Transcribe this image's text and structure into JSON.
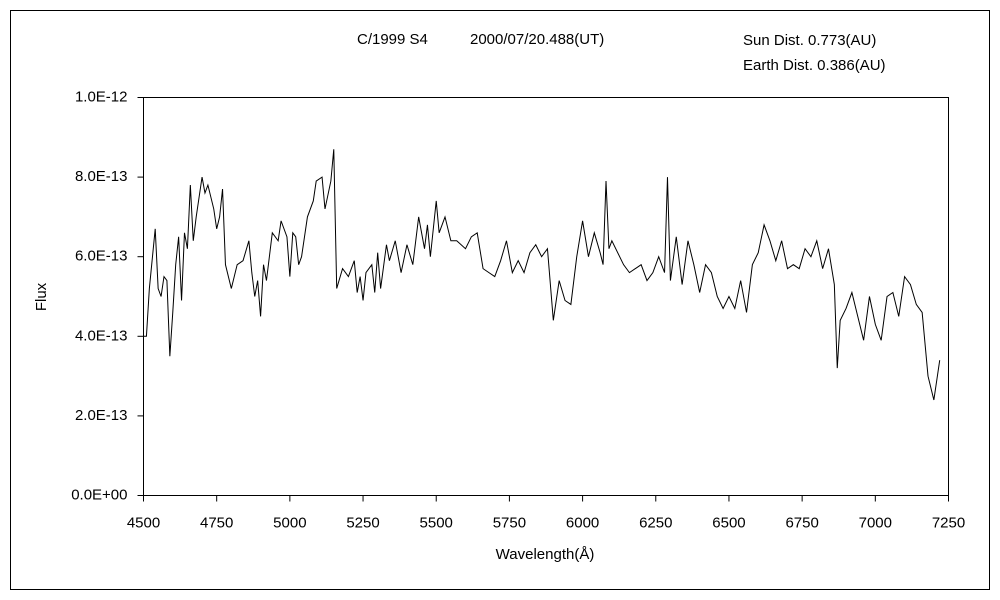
{
  "chart_data": {
    "type": "line",
    "annotations": [
      "C/1999 S4",
      "2000/07/20.488(UT)",
      "Sun Dist. 0.773(AU)",
      "Earth Dist. 0.386(AU)"
    ],
    "x_label": "Wavelength(Å)",
    "y_label": "Flux",
    "color": "#000000",
    "xlim": [
      4500,
      7250
    ],
    "xticks": [
      4500,
      4750,
      5000,
      5250,
      5500,
      5750,
      6000,
      6250,
      6500,
      6750,
      7000,
      7250
    ],
    "ylim": [
      0,
      1e-12
    ],
    "yticks": [
      {
        "value": 0,
        "label": "0.0E+00"
      },
      {
        "value": 2e-13,
        "label": "2.0E-13"
      },
      {
        "value": 4e-13,
        "label": "4.0E-13"
      },
      {
        "value": 6e-13,
        "label": "6.0E-13"
      },
      {
        "value": 8e-13,
        "label": "8.0E-13"
      },
      {
        "value": 1e-12,
        "label": "1.0E-12"
      }
    ],
    "grid": false,
    "x": [
      4500,
      4510,
      4520,
      4540,
      4550,
      4560,
      4570,
      4580,
      4590,
      4600,
      4610,
      4620,
      4630,
      4640,
      4650,
      4660,
      4670,
      4680,
      4700,
      4710,
      4720,
      4740,
      4750,
      4760,
      4770,
      4780,
      4790,
      4800,
      4820,
      4840,
      4860,
      4870,
      4880,
      4890,
      4900,
      4910,
      4920,
      4940,
      4960,
      4970,
      4990,
      5000,
      5010,
      5020,
      5030,
      5040,
      5060,
      5080,
      5090,
      5110,
      5120,
      5140,
      5150,
      5160,
      5180,
      5200,
      5220,
      5230,
      5240,
      5250,
      5260,
      5280,
      5290,
      5300,
      5310,
      5330,
      5340,
      5360,
      5380,
      5400,
      5420,
      5440,
      5460,
      5470,
      5480,
      5500,
      5510,
      5530,
      5550,
      5570,
      5600,
      5620,
      5640,
      5660,
      5680,
      5700,
      5720,
      5740,
      5760,
      5780,
      5800,
      5820,
      5840,
      5860,
      5880,
      5900,
      5920,
      5940,
      5960,
      5980,
      6000,
      6020,
      6040,
      6060,
      6070,
      6080,
      6090,
      6100,
      6140,
      6160,
      6200,
      6220,
      6240,
      6260,
      6280,
      6290,
      6300,
      6320,
      6340,
      6360,
      6380,
      6400,
      6420,
      6440,
      6460,
      6480,
      6500,
      6520,
      6540,
      6560,
      6580,
      6600,
      6620,
      6640,
      6660,
      6680,
      6700,
      6720,
      6740,
      6760,
      6780,
      6800,
      6820,
      6840,
      6860,
      6870,
      6880,
      6900,
      6920,
      6940,
      6960,
      6980,
      7000,
      7020,
      7040,
      7060,
      7080,
      7100,
      7120,
      7140,
      7160,
      7180,
      7200,
      7220
    ],
    "values": [
      4e-13,
      4e-13,
      5.2e-13,
      6.7e-13,
      5.2e-13,
      5e-13,
      5.5e-13,
      5.4e-13,
      3.5e-13,
      4.6e-13,
      5.8e-13,
      6.5e-13,
      4.9e-13,
      6.6e-13,
      6.2e-13,
      7.8e-13,
      6.4e-13,
      7e-13,
      8e-13,
      7.6e-13,
      7.8e-13,
      7.2e-13,
      6.7e-13,
      7e-13,
      7.7e-13,
      5.8e-13,
      5.5e-13,
      5.2e-13,
      5.8e-13,
      5.9e-13,
      6.4e-13,
      5.6e-13,
      5e-13,
      5.4e-13,
      4.5e-13,
      5.8e-13,
      5.4e-13,
      6.6e-13,
      6.4e-13,
      6.9e-13,
      6.5e-13,
      5.5e-13,
      6.6e-13,
      6.5e-13,
      5.8e-13,
      6e-13,
      7e-13,
      7.4e-13,
      7.9e-13,
      8e-13,
      7.2e-13,
      7.9e-13,
      8.7e-13,
      5.2e-13,
      5.7e-13,
      5.5e-13,
      5.9e-13,
      5.1e-13,
      5.5e-13,
      4.9e-13,
      5.6e-13,
      5.8e-13,
      5.1e-13,
      6.1e-13,
      5.2e-13,
      6.3e-13,
      5.9e-13,
      6.4e-13,
      5.6e-13,
      6.3e-13,
      5.8e-13,
      7e-13,
      6.2e-13,
      6.8e-13,
      6e-13,
      7.4e-13,
      6.6e-13,
      7e-13,
      6.4e-13,
      6.4e-13,
      6.2e-13,
      6.5e-13,
      6.6e-13,
      5.7e-13,
      5.6e-13,
      5.5e-13,
      5.9e-13,
      6.4e-13,
      5.6e-13,
      5.9e-13,
      5.6e-13,
      6.1e-13,
      6.3e-13,
      6e-13,
      6.2e-13,
      4.4e-13,
      5.4e-13,
      4.9e-13,
      4.8e-13,
      6e-13,
      6.9e-13,
      6e-13,
      6.6e-13,
      6.1e-13,
      5.8e-13,
      7.9e-13,
      6.2e-13,
      6.4e-13,
      5.8e-13,
      5.6e-13,
      5.8e-13,
      5.4e-13,
      5.6e-13,
      6e-13,
      5.6e-13,
      8e-13,
      5.4e-13,
      6.5e-13,
      5.3e-13,
      6.4e-13,
      5.8e-13,
      5.1e-13,
      5.8e-13,
      5.6e-13,
      5e-13,
      4.7e-13,
      5e-13,
      4.7e-13,
      5.4e-13,
      4.6e-13,
      5.8e-13,
      6.1e-13,
      6.8e-13,
      6.4e-13,
      5.9e-13,
      6.4e-13,
      5.7e-13,
      5.8e-13,
      5.7e-13,
      6.2e-13,
      6e-13,
      6.4e-13,
      5.7e-13,
      6.2e-13,
      5.3e-13,
      3.2e-13,
      4.4e-13,
      4.7e-13,
      5.1e-13,
      4.5e-13,
      3.9e-13,
      5e-13,
      4.3e-13,
      3.9e-13,
      5e-13,
      5.1e-13,
      4.5e-13,
      5.5e-13,
      5.3e-13,
      4.8e-13,
      4.6e-13,
      3e-13,
      2.4e-13,
      3.4e-13
    ]
  }
}
